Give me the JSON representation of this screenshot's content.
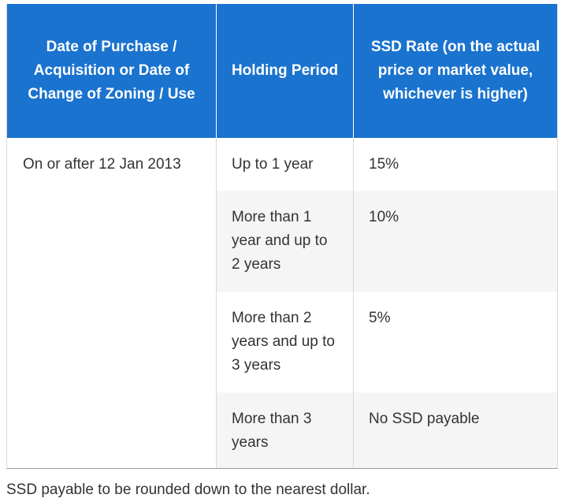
{
  "table": {
    "headers": [
      "Date of Purchase / Acquisition or Date of Change of Zoning / Use",
      "Holding Period",
      "SSD Rate (on the actual price or market value, whichever is higher)"
    ],
    "date_value": "On or after 12 Jan 2013",
    "rows": [
      {
        "period": "Up to 1 year",
        "rate": "15%"
      },
      {
        "period": "More than 1 year and up to 2 years",
        "rate": "10%"
      },
      {
        "period": "More than 2 years and up to 3 years",
        "rate": "5%"
      },
      {
        "period": "More than 3 years",
        "rate": "No SSD payable"
      }
    ]
  },
  "footnote": "SSD payable to be rounded down to the nearest dollar.",
  "colors": {
    "header_background": "#1a73cf",
    "header_text": "#ffffff",
    "body_text": "#333333",
    "alt_row_background": "#f5f5f5"
  }
}
